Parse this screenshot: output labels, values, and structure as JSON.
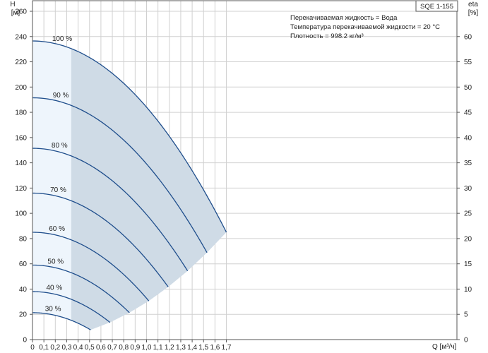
{
  "chart_data": {
    "type": "line",
    "model": "SQE 1-155",
    "info_lines": [
      "Перекачиваемая жидкость = Вода",
      "Температура перекачиваемой жидкости = 20 °C",
      "Плотность = 998.2 кг/м³"
    ],
    "y_left_label": "H",
    "y_left_unit": "[м]",
    "y_right_label": "eta",
    "y_right_unit": "[%]",
    "x_label": "Q [м³/ч]",
    "xlim": [
      0,
      1.86
    ],
    "ylim_left": [
      0,
      260
    ],
    "ylim_right": [
      0,
      65
    ],
    "x_ticks": [
      0,
      0.1,
      0.2,
      0.3,
      0.4,
      0.5,
      0.6,
      0.7,
      0.8,
      0.9,
      1.0,
      1.1,
      1.2,
      1.3,
      1.4,
      1.5,
      1.6,
      1.7
    ],
    "x_tick_labels": [
      "0",
      "0,1",
      "0,2",
      "0,3",
      "0,4",
      "0,5",
      "0,6",
      "0,7",
      "0,8",
      "0,9",
      "1,0",
      "1,1",
      "1,2",
      "1,3",
      "1,4",
      "1,5",
      "1,6",
      "1,7"
    ],
    "y_left_ticks": [
      0,
      20,
      40,
      60,
      80,
      100,
      120,
      140,
      160,
      180,
      200,
      220,
      240,
      260
    ],
    "y_right_ticks": [
      0,
      5,
      10,
      15,
      20,
      25,
      30,
      35,
      40,
      45,
      50,
      55,
      60
    ],
    "grid": true,
    "recommended_range_start_q": 0.34,
    "series": [
      {
        "name": "100 %",
        "h0": 236.5,
        "q_max": 1.7,
        "h_end": 85
      },
      {
        "name": "90 %",
        "h0": 191.5,
        "q_max": 1.53,
        "h_end": 68.9
      },
      {
        "name": "80 %",
        "h0": 151.5,
        "q_max": 1.36,
        "h_end": 54.4
      },
      {
        "name": "70 %",
        "h0": 116,
        "q_max": 1.19,
        "h_end": 41.7
      },
      {
        "name": "60 %",
        "h0": 85,
        "q_max": 1.02,
        "h_end": 30.6
      },
      {
        "name": "50 %",
        "h0": 59,
        "q_max": 0.85,
        "h_end": 21.3
      },
      {
        "name": "40 %",
        "h0": 38,
        "q_max": 0.68,
        "h_end": 13.6
      },
      {
        "name": "30 %",
        "h0": 21.3,
        "q_max": 0.51,
        "h_end": 7.7
      }
    ],
    "colors": {
      "curve": "#1f4e8c",
      "range_fill": "#cfdbe6",
      "low_fill": "#eef5fc",
      "grid": "#d0d0d0",
      "frame": "#555555"
    }
  }
}
